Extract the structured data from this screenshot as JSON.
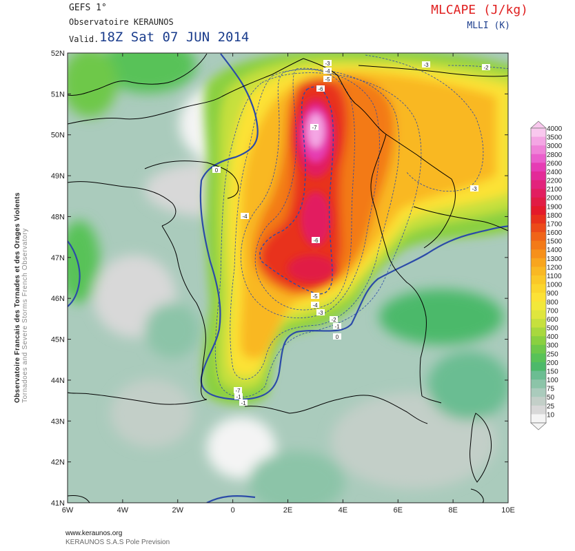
{
  "header": {
    "model": "GEFS 1°",
    "observatory": "Observatoire KERAUNOS",
    "valid_label": "Valid.",
    "valid_time": "18Z Sat 07 JUN 2014",
    "parameter": "MLCAPE (J/kg)",
    "parameter2": "MLLI (K)"
  },
  "side": {
    "line1": "Observatoire Francais des Tornades et des Orages Violents",
    "line2": "Tornadoes and Severe Storms French Observatory"
  },
  "footer": {
    "url": "www.keraunos.org",
    "company": "KERAUNOS S.A.S Pole Prevision"
  },
  "axes": {
    "lon_ticks": [
      "6W",
      "4W",
      "2W",
      "0",
      "2E",
      "4E",
      "6E",
      "8E",
      "10E"
    ],
    "lat_ticks": [
      "52N",
      "51N",
      "50N",
      "49N",
      "48N",
      "47N",
      "46N",
      "45N",
      "44N",
      "43N",
      "42N",
      "41N"
    ]
  },
  "legend": {
    "colorbar": {
      "levels": [
        "4000",
        "3500",
        "3000",
        "2800",
        "2600",
        "2400",
        "2200",
        "2100",
        "2000",
        "1900",
        "1800",
        "1700",
        "1600",
        "1500",
        "1400",
        "1300",
        "1200",
        "1100",
        "1000",
        "900",
        "800",
        "700",
        "600",
        "500",
        "400",
        "300",
        "250",
        "200",
        "150",
        "100",
        "75",
        "50",
        "25",
        "10"
      ],
      "colors": [
        "#f9c8ee",
        "#f4a6e4",
        "#ef83d8",
        "#ea5fcc",
        "#e63cb4",
        "#e32a98",
        "#e2227c",
        "#e21e60",
        "#e11c44",
        "#e41a2a",
        "#e8311c",
        "#ec4a19",
        "#f06418",
        "#f37a18",
        "#f6901a",
        "#f8a51e",
        "#f9b823",
        "#fac828",
        "#fbd62e",
        "#fce236",
        "#f2e83a",
        "#dfe63e",
        "#c6e03e",
        "#a8d83e",
        "#8ad040",
        "#6ec84a",
        "#58c258",
        "#4cb96a",
        "#6bbd92",
        "#8cc4a8",
        "#aacbbc",
        "#c3cfc8",
        "#d8d8d8",
        "#f4f4f4"
      ]
    }
  },
  "contour_labels": [
    "-3",
    "-4",
    "-5",
    "-6",
    "-7",
    "-2",
    "-3",
    "0",
    "-4",
    "-6",
    "-5",
    "-4",
    "-3",
    "-2",
    "-1",
    "0",
    "-7",
    "-2",
    "-1",
    "-1",
    "-3"
  ],
  "colors": {
    "contour_line": "#2b4aa8",
    "coastline": "#000000",
    "background": "#ffffff"
  }
}
